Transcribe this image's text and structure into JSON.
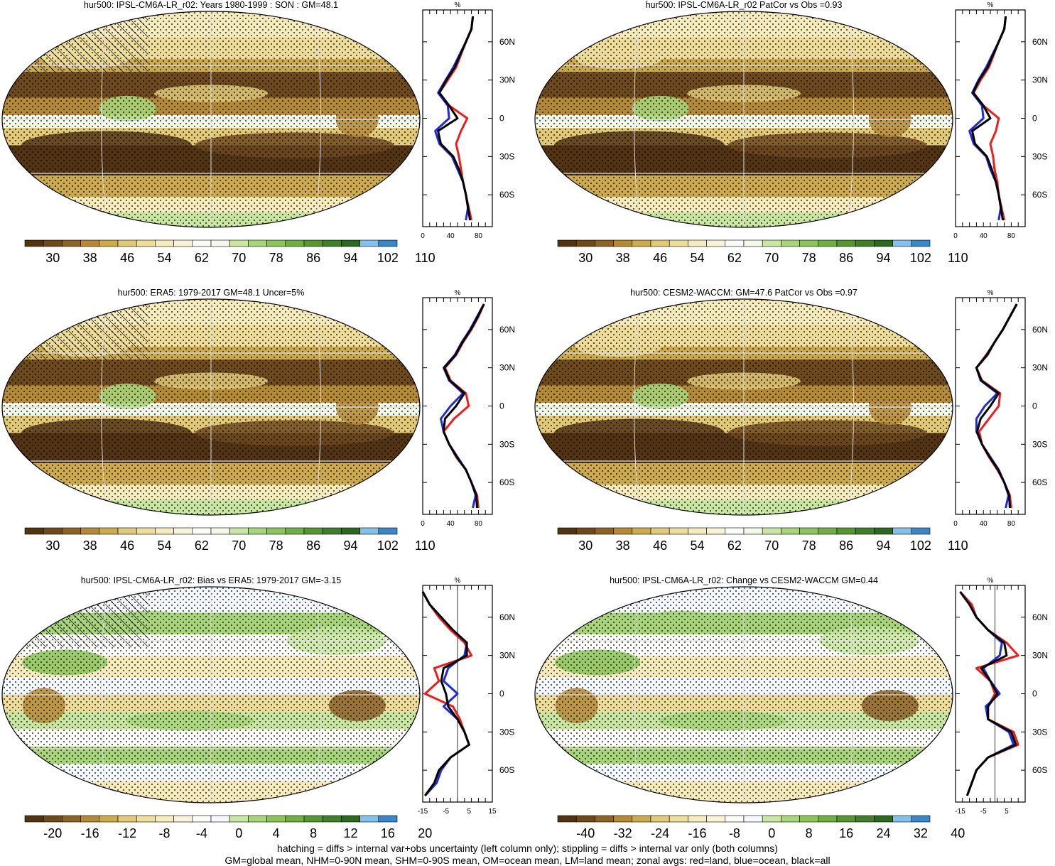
{
  "chart_data": [
    {
      "type": "heatmap",
      "title": "hur500: IPSL-CM6A-LR_r02: Years 1980-1999 : SON : GM=48.1",
      "colorbar": {
        "ticks": [
          "30",
          "38",
          "46",
          "54",
          "62",
          "70",
          "78",
          "86",
          "94",
          "102",
          "110"
        ],
        "palette": "abs"
      },
      "zonal": {
        "unit": "%",
        "xticks": [
          "0",
          "40",
          "80"
        ],
        "yticks": [
          "60N",
          "30N",
          "0",
          "30S",
          "60S"
        ],
        "xlim": [
          0,
          100
        ],
        "lat": [
          80,
          70,
          60,
          50,
          40,
          30,
          20,
          10,
          0,
          -10,
          -20,
          -30,
          -40,
          -50,
          -60,
          -70,
          -80
        ],
        "land": [
          72,
          70,
          62,
          55,
          48,
          36,
          24,
          38,
          64,
          55,
          48,
          52,
          55,
          58,
          62,
          66,
          70
        ],
        "ocean": [
          72,
          70,
          62,
          53,
          44,
          33,
          22,
          36,
          38,
          18,
          24,
          42,
          50,
          58,
          62,
          65,
          62
        ],
        "all": [
          72,
          70,
          62,
          54,
          46,
          34,
          24,
          38,
          50,
          22,
          26,
          44,
          52,
          58,
          62,
          65,
          68
        ]
      }
    },
    {
      "type": "heatmap",
      "title": "hur500: IPSL-CM6A-LR_r02 PatCor vs Obs =0.93",
      "colorbar": {
        "ticks": [
          "30",
          "38",
          "46",
          "54",
          "62",
          "70",
          "78",
          "86",
          "94",
          "102",
          "110"
        ],
        "palette": "abs"
      },
      "zonal": {
        "unit": "%",
        "xticks": [
          "0",
          "40",
          "80"
        ],
        "yticks": [
          "60N",
          "30N",
          "0",
          "30S",
          "60S"
        ],
        "xlim": [
          0,
          100
        ],
        "lat": [
          80,
          70,
          60,
          50,
          40,
          30,
          20,
          10,
          0,
          -10,
          -20,
          -30,
          -40,
          -50,
          -60,
          -70,
          -80
        ],
        "land": [
          72,
          70,
          62,
          55,
          48,
          36,
          26,
          40,
          62,
          58,
          50,
          54,
          56,
          60,
          62,
          66,
          70
        ],
        "ocean": [
          72,
          70,
          62,
          53,
          44,
          33,
          24,
          38,
          40,
          20,
          26,
          44,
          50,
          58,
          62,
          65,
          62
        ],
        "all": [
          72,
          70,
          62,
          54,
          46,
          34,
          25,
          40,
          50,
          24,
          28,
          45,
          52,
          58,
          62,
          65,
          68
        ]
      }
    },
    {
      "type": "heatmap",
      "title": "hur500: ERA5: 1979-2017 GM=48.1 Uncer=5%",
      "colorbar": {
        "ticks": [
          "30",
          "38",
          "46",
          "54",
          "62",
          "70",
          "78",
          "86",
          "94",
          "102",
          "110"
        ],
        "palette": "abs"
      },
      "zonal": {
        "unit": "%",
        "xticks": [
          "0",
          "40",
          "80"
        ],
        "yticks": [
          "60N",
          "30N",
          "0",
          "30S",
          "60S"
        ],
        "xlim": [
          0,
          100
        ],
        "lat": [
          80,
          70,
          60,
          50,
          40,
          30,
          20,
          10,
          0,
          -10,
          -20,
          -30,
          -40,
          -50,
          -60,
          -70,
          -80
        ],
        "land": [
          88,
          80,
          70,
          58,
          48,
          32,
          40,
          62,
          66,
          45,
          30,
          38,
          48,
          62,
          70,
          78,
          80
        ],
        "ocean": [
          88,
          78,
          68,
          56,
          46,
          30,
          38,
          58,
          40,
          26,
          30,
          38,
          50,
          62,
          70,
          76,
          72
        ],
        "all": [
          88,
          79,
          69,
          57,
          47,
          31,
          39,
          60,
          48,
          32,
          30,
          38,
          49,
          62,
          70,
          77,
          78
        ]
      }
    },
    {
      "type": "heatmap",
      "title": "hur500: CESM2-WACCM: GM=47.6 PatCor vs Obs =0.97",
      "colorbar": {
        "ticks": [
          "30",
          "38",
          "46",
          "54",
          "62",
          "70",
          "78",
          "86",
          "94",
          "102",
          "110"
        ],
        "palette": "abs"
      },
      "zonal": {
        "unit": "%",
        "xticks": [
          "0",
          "40",
          "80"
        ],
        "yticks": [
          "60N",
          "30N",
          "0",
          "30S",
          "60S"
        ],
        "xlim": [
          0,
          100
        ],
        "lat": [
          80,
          70,
          60,
          50,
          40,
          30,
          20,
          10,
          0,
          -10,
          -20,
          -30,
          -40,
          -50,
          -60,
          -70,
          -80
        ],
        "land": [
          88,
          78,
          68,
          56,
          44,
          30,
          38,
          64,
          62,
          48,
          34,
          38,
          48,
          60,
          70,
          78,
          80
        ],
        "ocean": [
          88,
          78,
          68,
          56,
          46,
          30,
          36,
          60,
          42,
          30,
          30,
          38,
          50,
          62,
          70,
          76,
          72
        ],
        "all": [
          88,
          78,
          68,
          56,
          45,
          30,
          37,
          62,
          50,
          36,
          31,
          38,
          49,
          61,
          70,
          77,
          78
        ]
      }
    },
    {
      "type": "heatmap",
      "title": "hur500: IPSL-CM6A-LR_r02: Bias vs ERA5: 1979-2017  GM=-3.15",
      "colorbar": {
        "ticks": [
          "-20",
          "-16",
          "-12",
          "-8",
          "-4",
          "0",
          "4",
          "8",
          "12",
          "16",
          "20"
        ],
        "palette": "diff"
      },
      "zonal": {
        "unit": "%",
        "xticks": [
          "-15",
          "-5",
          "5",
          "15"
        ],
        "yticks": [
          "60N",
          "30N",
          "0",
          "30S",
          "60S"
        ],
        "xlim": [
          -15,
          15
        ],
        "lat": [
          80,
          70,
          60,
          50,
          40,
          30,
          20,
          10,
          0,
          -10,
          -20,
          -30,
          -40,
          -50,
          -60,
          -70,
          -80
        ],
        "land": [
          -15,
          -12,
          -8,
          -3,
          3,
          6,
          -10,
          -8,
          -14,
          -2,
          1,
          3,
          5,
          -3,
          -8,
          -10,
          -14
        ],
        "ocean": [
          -15,
          -12,
          -7,
          -2,
          4,
          3,
          -4,
          -6,
          0,
          -6,
          0,
          3,
          5,
          -3,
          -7,
          -9,
          -14
        ],
        "all": [
          -15,
          -12,
          -7,
          -2,
          4,
          4,
          -6,
          -7,
          -5,
          -4,
          0,
          3,
          5,
          -3,
          -8,
          -10,
          -14
        ]
      }
    },
    {
      "type": "heatmap",
      "title": "hur500: IPSL-CM6A-LR_r02: Change vs CESM2-WACCM GM=0.44",
      "colorbar": {
        "ticks": [
          "-40",
          "-32",
          "-24",
          "-16",
          "-8",
          "0",
          "8",
          "16",
          "24",
          "32",
          "40"
        ],
        "palette": "diff"
      },
      "zonal": {
        "unit": "%",
        "xticks": [
          "-15",
          "-5",
          "5"
        ],
        "yticks": [
          "60N",
          "30N",
          "0",
          "30S",
          "60S"
        ],
        "xlim": [
          -17,
          13
        ],
        "lat": [
          80,
          70,
          60,
          50,
          40,
          30,
          20,
          10,
          0,
          -10,
          -20,
          -30,
          -40,
          -50,
          -60,
          -70,
          -80
        ],
        "land": [
          -15,
          -10,
          -8,
          -3,
          5,
          10,
          -8,
          -2,
          0,
          -3,
          -3,
          8,
          10,
          -3,
          -8,
          -10,
          -12
        ],
        "ocean": [
          -15,
          -11,
          -8,
          -3,
          3,
          2,
          -5,
          -2,
          2,
          -4,
          -3,
          6,
          8,
          -3,
          -8,
          -10,
          -12
        ],
        "all": [
          -15,
          -11,
          -8,
          -3,
          4,
          5,
          -6,
          -2,
          1,
          -3,
          -3,
          7,
          9,
          -3,
          -8,
          -10,
          -12
        ]
      }
    }
  ],
  "palettes": {
    "abs": [
      "#523411",
      "#6e4a1b",
      "#8c6326",
      "#b48a36",
      "#ccaa4e",
      "#e1c978",
      "#eedd9b",
      "#f5ebbc",
      "#f8f3d6",
      "#fafaf7",
      "#f3f8e8",
      "#c9e6a3",
      "#a8d57c",
      "#8bc45c",
      "#6fae44",
      "#559633",
      "#3f7f28",
      "#2a6a1f",
      "#84c1ea",
      "#3a87c8"
    ],
    "diff": [
      "#523411",
      "#6e4a1b",
      "#8c6326",
      "#b48a36",
      "#ccaa4e",
      "#e1c978",
      "#eedd9b",
      "#f5ebbc",
      "#f8f3d6",
      "#fafaf7",
      "#f5f8fb",
      "#c9e6a3",
      "#a8d57c",
      "#8bc45c",
      "#6fae44",
      "#559633",
      "#3f7f28",
      "#2a6a1f",
      "#84c1ea",
      "#3a87c8"
    ]
  },
  "colors": {
    "land": "#ee1c1c",
    "ocean": "#1f2bd6",
    "all": "#000000"
  },
  "footer": {
    "line1": "hatching = diffs > internal var+obs uncertainty (left column only); stippling = diffs > internal var only (both columns)",
    "line2": "GM=global mean, NHM=0-90N mean, SHM=0-90S mean, OM=ocean mean, LM=land mean; zonal avgs: red=land, blue=ocean, black=all"
  }
}
